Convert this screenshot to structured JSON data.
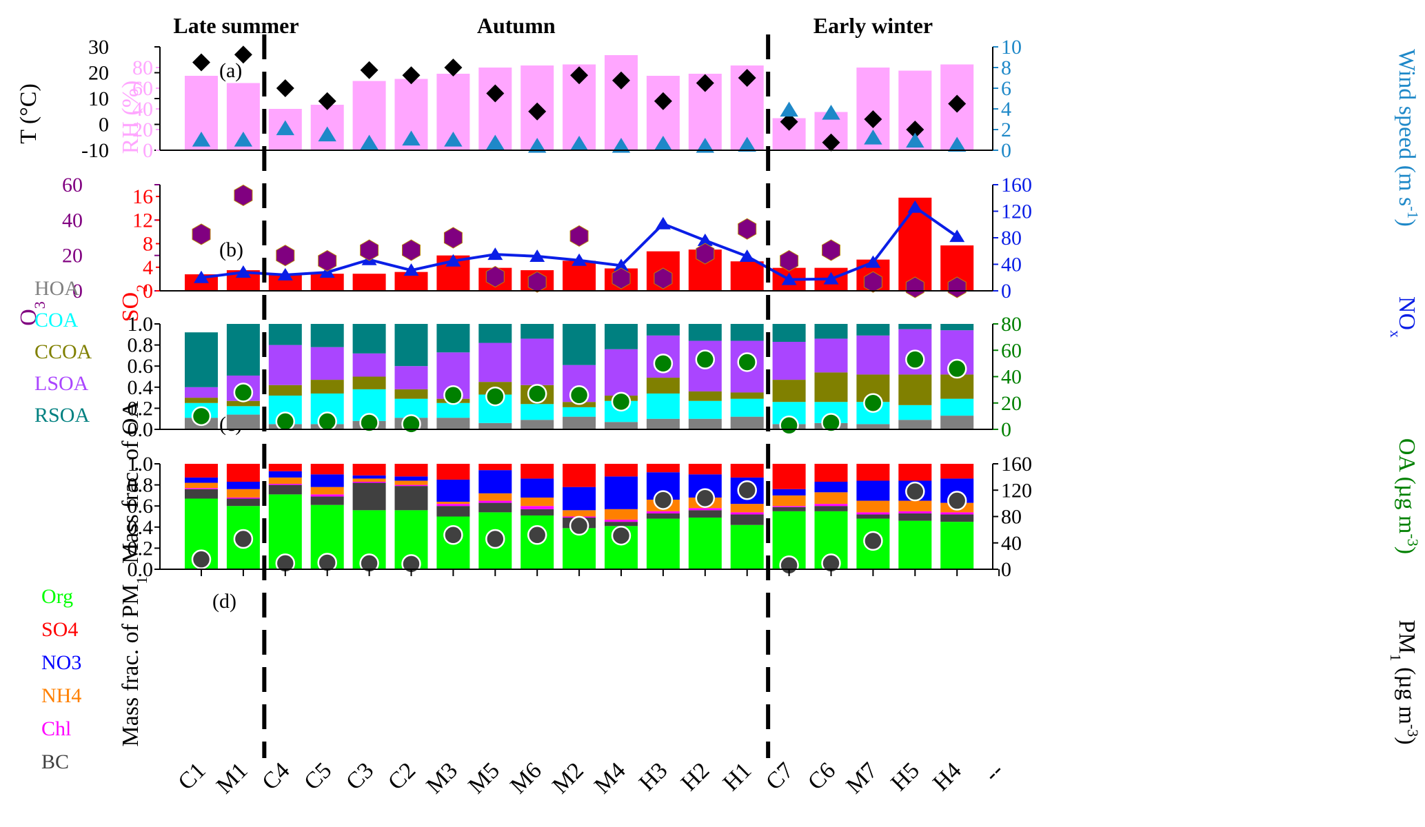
{
  "season_labels": [
    {
      "text": "Late summer",
      "start": 0,
      "end": 1
    },
    {
      "text": "Autumn",
      "start": 2,
      "end": 13
    },
    {
      "text": "Early winter",
      "start": 14,
      "end": 18
    }
  ],
  "categories": [
    "C1",
    "M1",
    "C4",
    "C5",
    "C3",
    "C2",
    "M3",
    "M5",
    "M6",
    "M2",
    "M4",
    "H3",
    "H2",
    "H1",
    "C7",
    "C6",
    "M7",
    "H5",
    "H4",
    "--"
  ],
  "season_dividers_after": [
    1,
    13
  ],
  "colors": {
    "rh": "#FFA6FF",
    "temp": "#000000",
    "wind": "#1E88C8",
    "so2": "#FF0000",
    "o3": "#800080",
    "nox": "#0A1EE6",
    "hoa": "#808080",
    "coa": "#00FFFF",
    "ccoa": "#808000",
    "lsoa": "#AA45FF",
    "rsoa": "#008080",
    "org": "#00FF00",
    "so4": "#FF0000",
    "no3": "#0000FF",
    "nh4": "#FF8000",
    "chl": "#FF00FF",
    "bc": "#404040",
    "oa_marker": "#008000",
    "pm_marker": "#404040"
  },
  "chart_data": [
    {
      "panel": "(a)",
      "type": "bar+scatter",
      "left_axis": {
        "label": "T (°C)",
        "ylim": [
          -10,
          30
        ],
        "ticks": [
          -10,
          0,
          10,
          20,
          30
        ]
      },
      "inner_axis": {
        "label": "RH (%)",
        "ylim": [
          0,
          100
        ],
        "ticks": [
          0,
          20,
          40,
          60,
          80
        ]
      },
      "right_axis": {
        "label": "Wind speed (m s-1)",
        "ylim": [
          0,
          10
        ],
        "ticks": [
          0,
          2,
          4,
          6,
          8,
          10
        ]
      },
      "series": [
        {
          "key": "rh",
          "kind": "bar",
          "axis": "inner",
          "values": [
            72,
            65,
            40,
            44,
            67,
            69,
            74,
            80,
            82,
            83,
            92,
            72,
            74,
            82,
            31,
            37,
            80,
            77,
            83
          ]
        },
        {
          "key": "temp",
          "kind": "diamond",
          "axis": "left",
          "values": [
            24,
            27,
            14,
            9,
            21,
            19,
            22,
            12,
            5,
            19,
            17,
            9,
            16,
            18,
            1,
            -7,
            2,
            -2,
            8
          ]
        },
        {
          "key": "wind",
          "kind": "triangle",
          "axis": "right",
          "values": [
            1.0,
            1.0,
            2.1,
            1.5,
            0.7,
            1.1,
            1.0,
            0.7,
            0.4,
            0.6,
            0.4,
            0.6,
            0.4,
            0.5,
            3.9,
            3.6,
            1.2,
            0.9,
            0.5
          ]
        }
      ]
    },
    {
      "panel": "(b)",
      "type": "bar+scatter+line",
      "left_axis": {
        "label": "O3",
        "ylim": [
          0,
          60
        ],
        "ticks": [
          0,
          20,
          40,
          60
        ]
      },
      "inner_axis": {
        "label": "SO2",
        "ylim": [
          0,
          18
        ],
        "ticks": [
          0,
          4,
          8,
          12,
          16
        ]
      },
      "right_axis": {
        "label": "NOx",
        "ylim": [
          0,
          160
        ],
        "ticks": [
          0,
          40,
          80,
          120,
          160
        ]
      },
      "series": [
        {
          "key": "so2",
          "kind": "bar",
          "axis": "inner",
          "values": [
            2.8,
            3.5,
            2.8,
            2.9,
            2.9,
            3.2,
            6.0,
            3.9,
            3.5,
            5.1,
            3.8,
            6.7,
            7.0,
            5.0,
            3.9,
            3.9,
            5.3,
            15.8,
            7.7
          ]
        },
        {
          "key": "o3",
          "kind": "hexagon",
          "axis": "left",
          "values": [
            32,
            54,
            20,
            17,
            23,
            23,
            30,
            8,
            5,
            31,
            7,
            7,
            21,
            35,
            17,
            23,
            5,
            2,
            2
          ]
        },
        {
          "key": "nox",
          "kind": "line",
          "axis": "right",
          "values": [
            20,
            28,
            24,
            28,
            47,
            31,
            45,
            55,
            52,
            46,
            38,
            101,
            76,
            52,
            17,
            18,
            43,
            126,
            82
          ]
        }
      ]
    },
    {
      "panel": "(c)",
      "type": "stacked-bar+scatter",
      "left_axis": {
        "label": "Mass frac. of OA",
        "ylim": [
          0,
          1
        ],
        "ticks": [
          "0.0",
          "0.2",
          "0.4",
          "0.6",
          "0.8",
          "1.0"
        ]
      },
      "right_axis": {
        "label": "OA (µg m-3)",
        "ylim": [
          0,
          80
        ],
        "ticks": [
          0,
          20,
          40,
          60,
          80
        ]
      },
      "legend": [
        "HOA",
        "COA",
        "CCOA",
        "LSOA",
        "RSOA"
      ],
      "stack_order": [
        "hoa",
        "coa",
        "ccoa",
        "lsoa",
        "rsoa"
      ],
      "fractions": [
        [
          0.11,
          0.14,
          0.05,
          0.1,
          0.52
        ],
        [
          0.14,
          0.08,
          0.05,
          0.24,
          0.49
        ],
        [
          0.05,
          0.27,
          0.1,
          0.38,
          0.2
        ],
        [
          0.05,
          0.29,
          0.13,
          0.31,
          0.22
        ],
        [
          0.08,
          0.3,
          0.12,
          0.22,
          0.28
        ],
        [
          0.11,
          0.18,
          0.09,
          0.22,
          0.4
        ],
        [
          0.11,
          0.14,
          0.04,
          0.44,
          0.27
        ],
        [
          0.06,
          0.27,
          0.12,
          0.37,
          0.18
        ],
        [
          0.09,
          0.15,
          0.18,
          0.44,
          0.14
        ],
        [
          0.12,
          0.09,
          0.05,
          0.35,
          0.39
        ],
        [
          0.07,
          0.2,
          0.05,
          0.44,
          0.24
        ],
        [
          0.1,
          0.24,
          0.15,
          0.4,
          0.11
        ],
        [
          0.1,
          0.17,
          0.09,
          0.48,
          0.16
        ],
        [
          0.12,
          0.17,
          0.06,
          0.49,
          0.16
        ],
        [
          0.05,
          0.21,
          0.21,
          0.36,
          0.17
        ],
        [
          0.06,
          0.2,
          0.28,
          0.32,
          0.14
        ],
        [
          0.05,
          0.21,
          0.26,
          0.37,
          0.11
        ],
        [
          0.09,
          0.14,
          0.29,
          0.43,
          0.05
        ],
        [
          0.13,
          0.16,
          0.23,
          0.42,
          0.06
        ]
      ],
      "marker": {
        "key": "oa_marker",
        "values": [
          10,
          28,
          6,
          6,
          5,
          4,
          26,
          25,
          27,
          26,
          21,
          50,
          53,
          51,
          3,
          5,
          20,
          53,
          46
        ]
      }
    },
    {
      "panel": "(d)",
      "type": "stacked-bar+scatter",
      "left_axis": {
        "label": "Mass frac. of PM1",
        "ylim": [
          0,
          1
        ],
        "ticks": [
          "0.0",
          "0.2",
          "0.4",
          "0.6",
          "0.8",
          "1.0"
        ]
      },
      "right_axis": {
        "label": "PM1 (µg m-3)",
        "ylim": [
          0,
          160
        ],
        "ticks": [
          0,
          40,
          80,
          120,
          160
        ]
      },
      "legend": [
        "Org",
        "SO4",
        "NO3",
        "NH4",
        "Chl",
        "BC"
      ],
      "stack_order": [
        "org",
        "bc",
        "chl",
        "nh4",
        "no3",
        "so4"
      ],
      "fractions": [
        [
          0.67,
          0.09,
          0.01,
          0.05,
          0.05,
          0.13
        ],
        [
          0.6,
          0.07,
          0.01,
          0.08,
          0.07,
          0.17
        ],
        [
          0.71,
          0.09,
          0.01,
          0.06,
          0.06,
          0.07
        ],
        [
          0.61,
          0.08,
          0.02,
          0.07,
          0.12,
          0.1
        ],
        [
          0.56,
          0.26,
          0.01,
          0.03,
          0.03,
          0.11
        ],
        [
          0.56,
          0.23,
          0.01,
          0.04,
          0.04,
          0.12
        ],
        [
          0.5,
          0.1,
          0.02,
          0.02,
          0.21,
          0.15
        ],
        [
          0.54,
          0.09,
          0.02,
          0.07,
          0.22,
          0.06
        ],
        [
          0.51,
          0.06,
          0.03,
          0.08,
          0.18,
          0.14
        ],
        [
          0.39,
          0.1,
          0.01,
          0.06,
          0.22,
          0.22
        ],
        [
          0.41,
          0.04,
          0.02,
          0.1,
          0.31,
          0.12
        ],
        [
          0.48,
          0.05,
          0.02,
          0.11,
          0.26,
          0.08
        ],
        [
          0.49,
          0.07,
          0.02,
          0.1,
          0.22,
          0.1
        ],
        [
          0.42,
          0.1,
          0.02,
          0.08,
          0.25,
          0.13
        ],
        [
          0.55,
          0.04,
          0.01,
          0.1,
          0.06,
          0.24
        ],
        [
          0.55,
          0.05,
          0.02,
          0.11,
          0.1,
          0.17
        ],
        [
          0.48,
          0.04,
          0.02,
          0.11,
          0.19,
          0.16
        ],
        [
          0.46,
          0.07,
          0.02,
          0.1,
          0.19,
          0.16
        ],
        [
          0.45,
          0.07,
          0.02,
          0.09,
          0.23,
          0.14
        ]
      ],
      "marker": {
        "key": "pm_marker",
        "values": [
          15,
          46,
          9,
          10,
          9,
          8,
          52,
          46,
          52,
          66,
          51,
          105,
          108,
          120,
          6,
          9,
          43,
          118,
          104
        ]
      }
    }
  ]
}
